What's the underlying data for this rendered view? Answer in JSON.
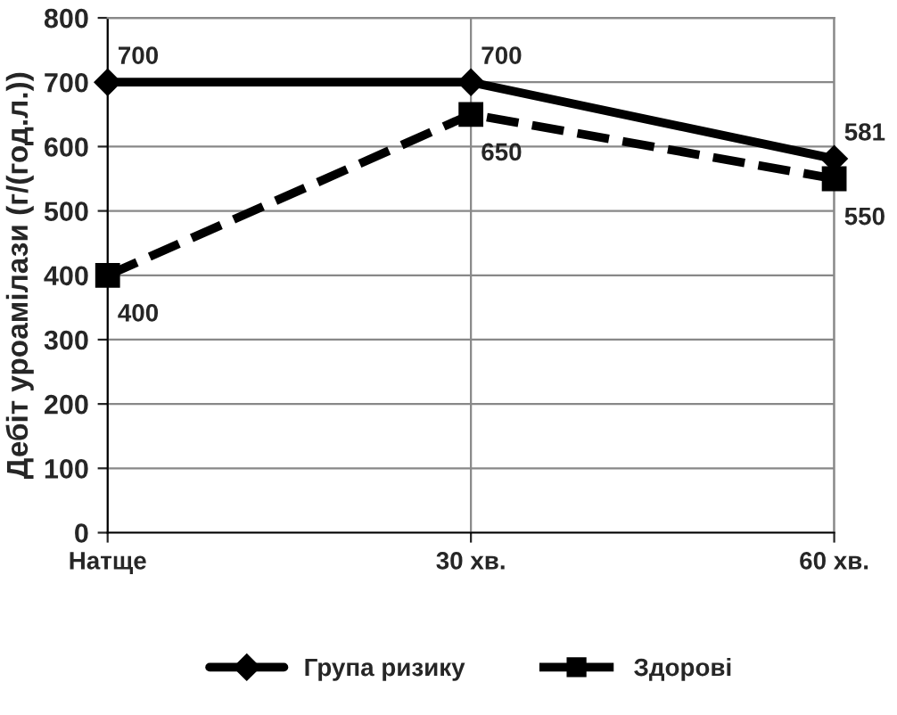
{
  "chart_data": {
    "type": "line",
    "ylabel": "Дебіт уроамілази (г/(год.л.))",
    "categories": [
      "Натще",
      "30 хв.",
      "60 хв."
    ],
    "series": [
      {
        "name": "Група ризику",
        "color": "#000000",
        "values": [
          700,
          700,
          581
        ],
        "marker": "diamond",
        "line_style": "solid"
      },
      {
        "name": "Здорові",
        "color": "#000000",
        "values": [
          400,
          650,
          550
        ],
        "marker": "square",
        "line_style": "dashed"
      }
    ],
    "ylim": [
      0,
      800
    ],
    "yticks": [
      0,
      100,
      200,
      300,
      400,
      500,
      600,
      700,
      800
    ],
    "grid": true,
    "legend": "bottom",
    "data_labels": true
  }
}
